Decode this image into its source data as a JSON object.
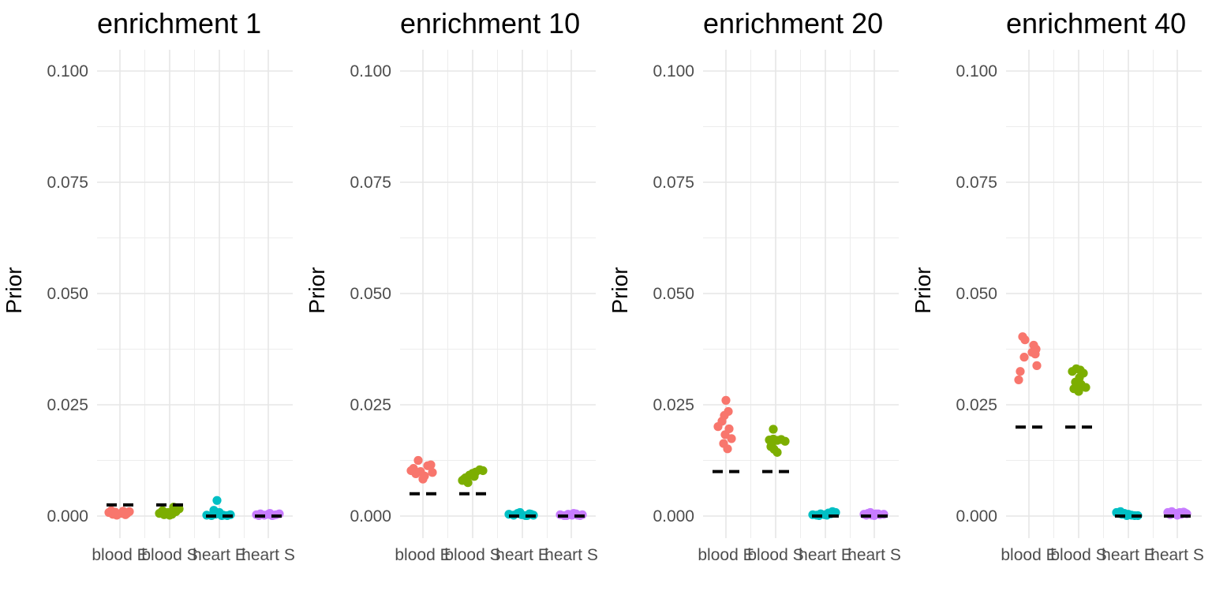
{
  "figure": {
    "y_axis_title": "Prior",
    "x_categories": [
      "blood E",
      "blood S",
      "heart E",
      "heart S"
    ],
    "y_ticks": [
      {
        "label": "0.100",
        "value": 0.1
      },
      {
        "label": "0.075",
        "value": 0.075
      },
      {
        "label": "0.050",
        "value": 0.05
      },
      {
        "label": "0.025",
        "value": 0.025
      },
      {
        "label": "0.000",
        "value": 0.0
      }
    ],
    "point_format": "[x_jitter_px, prior_value]",
    "style": {
      "background": "#FFFFFF",
      "grid_major_color": "#E6E6E6",
      "grid_minor_color": "#EDEDED",
      "axis_text_color": "#4D4D4D",
      "title_color": "#000000",
      "axis_title_color": "#000000",
      "dash_color": "#000000",
      "palette": {
        "blood E": "#F8766D",
        "blood S": "#7CAE00",
        "heart E": "#00BFC4",
        "heart S": "#C77CFF"
      }
    }
  },
  "chart_data": [
    {
      "type": "scatter",
      "title": "enrichment 1",
      "xlabel": "",
      "ylabel": "Prior",
      "ylim": [
        0,
        0.1
      ],
      "grid": true,
      "legend": "none",
      "categories": [
        "blood E",
        "blood S",
        "heart E",
        "heart S"
      ],
      "series": [
        {
          "name": "blood E",
          "color": "#F8766D",
          "expected_prior": 0.0025,
          "points": [
            [
              -14,
              0.0008
            ],
            [
              -9,
              0.0004
            ],
            [
              -4,
              0.0002
            ],
            [
              2,
              0.0006
            ],
            [
              7,
              0.0003
            ],
            [
              12,
              0.001
            ],
            [
              -11,
              0.0012
            ],
            [
              4,
              0.0011
            ],
            [
              -6,
              0.0009
            ],
            [
              9,
              0.0006
            ]
          ]
        },
        {
          "name": "blood S",
          "color": "#7CAE00",
          "expected_prior": 0.0025,
          "points": [
            [
              -13,
              0.0006
            ],
            [
              -7,
              0.0003
            ],
            [
              -2,
              0.0008
            ],
            [
              3,
              0.0004
            ],
            [
              8,
              0.001
            ],
            [
              12,
              0.0016
            ],
            [
              5,
              0.002
            ],
            [
              -9,
              0.0012
            ],
            [
              0,
              0.0002
            ],
            [
              10,
              0.0018
            ]
          ]
        },
        {
          "name": "heart E",
          "color": "#00BFC4",
          "expected_prior": 0.0,
          "points": [
            [
              -3,
              0.0035
            ],
            [
              -16,
              0.0002
            ],
            [
              -10,
              0.0001
            ],
            [
              -5,
              0.0004
            ],
            [
              0,
              0.0008
            ],
            [
              5,
              0.0002
            ],
            [
              10,
              0.0001
            ],
            [
              14,
              0.0003
            ],
            [
              -7,
              0.0013
            ],
            [
              3,
              0.0001
            ]
          ]
        },
        {
          "name": "heart S",
          "color": "#C77CFF",
          "expected_prior": 0.0,
          "points": [
            [
              -15,
              0.0003
            ],
            [
              -10,
              0.0005
            ],
            [
              -5,
              0.0002
            ],
            [
              0,
              0.0004
            ],
            [
              5,
              0.0001
            ],
            [
              10,
              0.0003
            ],
            [
              14,
              0.0005
            ],
            [
              -12,
              0.0001
            ],
            [
              2,
              0.0006
            ],
            [
              7,
              0.0002
            ]
          ]
        }
      ]
    },
    {
      "type": "scatter",
      "title": "enrichment 10",
      "xlabel": "",
      "ylabel": "Prior",
      "ylim": [
        0,
        0.1
      ],
      "grid": true,
      "legend": "none",
      "categories": [
        "blood E",
        "blood S",
        "heart E",
        "heart S"
      ],
      "series": [
        {
          "name": "blood E",
          "color": "#F8766D",
          "expected_prior": 0.005,
          "points": [
            [
              -6,
              0.0125
            ],
            [
              -12,
              0.0107
            ],
            [
              -9,
              0.0095
            ],
            [
              -3,
              0.01
            ],
            [
              2,
              0.009
            ],
            [
              6,
              0.0113
            ],
            [
              10,
              0.0115
            ],
            [
              12,
              0.0098
            ],
            [
              0,
              0.0083
            ],
            [
              -15,
              0.0102
            ]
          ]
        },
        {
          "name": "blood S",
          "color": "#7CAE00",
          "expected_prior": 0.005,
          "points": [
            [
              -13,
              0.008
            ],
            [
              -9,
              0.0086
            ],
            [
              -4,
              0.0092
            ],
            [
              0,
              0.0096
            ],
            [
              4,
              0.0099
            ],
            [
              9,
              0.0104
            ],
            [
              13,
              0.0102
            ],
            [
              -6,
              0.0075
            ],
            [
              2,
              0.0089
            ],
            [
              -11,
              0.0083
            ]
          ]
        },
        {
          "name": "heart E",
          "color": "#00BFC4",
          "expected_prior": 0.0,
          "points": [
            [
              -17,
              0.0004
            ],
            [
              -11,
              0.0002
            ],
            [
              -6,
              0.0006
            ],
            [
              -1,
              0.0003
            ],
            [
              4,
              0.0001
            ],
            [
              9,
              0.0005
            ],
            [
              14,
              0.0002
            ],
            [
              -3,
              0.0008
            ],
            [
              6,
              0.0001
            ],
            [
              11,
              0.0004
            ]
          ]
        },
        {
          "name": "heart S",
          "color": "#C77CFF",
          "expected_prior": 0.0,
          "points": [
            [
              -14,
              0.0003
            ],
            [
              -9,
              0.0001
            ],
            [
              -4,
              0.0004
            ],
            [
              1,
              0.0002
            ],
            [
              6,
              0.0005
            ],
            [
              11,
              0.0001
            ],
            [
              14,
              0.0003
            ],
            [
              -6,
              0.0001
            ],
            [
              3,
              0.0006
            ],
            [
              8,
              0.0002
            ]
          ]
        }
      ]
    },
    {
      "type": "scatter",
      "title": "enrichment 20",
      "xlabel": "",
      "ylabel": "Prior",
      "ylim": [
        0,
        0.1
      ],
      "grid": true,
      "legend": "none",
      "categories": [
        "blood E",
        "blood S",
        "heart E",
        "heart S"
      ],
      "series": [
        {
          "name": "blood E",
          "color": "#F8766D",
          "expected_prior": 0.01,
          "points": [
            [
              0,
              0.026
            ],
            [
              3,
              0.0235
            ],
            [
              -2,
              0.0226
            ],
            [
              -5,
              0.0213
            ],
            [
              -10,
              0.0201
            ],
            [
              4,
              0.0196
            ],
            [
              -1,
              0.0183
            ],
            [
              7,
              0.0174
            ],
            [
              -3,
              0.0163
            ],
            [
              2,
              0.0151
            ]
          ]
        },
        {
          "name": "blood S",
          "color": "#7CAE00",
          "expected_prior": 0.01,
          "points": [
            [
              -3,
              0.0195
            ],
            [
              -8,
              0.0171
            ],
            [
              -3,
              0.0173
            ],
            [
              2,
              0.017
            ],
            [
              7,
              0.0172
            ],
            [
              12,
              0.0168
            ],
            [
              -6,
              0.0156
            ],
            [
              -2,
              0.015
            ],
            [
              2,
              0.0143
            ],
            [
              -5,
              0.0162
            ]
          ]
        },
        {
          "name": "heart E",
          "color": "#00BFC4",
          "expected_prior": 0.0,
          "points": [
            [
              -16,
              0.0003
            ],
            [
              -11,
              0.0002
            ],
            [
              -6,
              0.0005
            ],
            [
              -1,
              0.0003
            ],
            [
              4,
              0.0007
            ],
            [
              9,
              0.001
            ],
            [
              13,
              0.0008
            ],
            [
              -8,
              0.0001
            ],
            [
              2,
              0.0002
            ],
            [
              7,
              0.0005
            ]
          ]
        },
        {
          "name": "heart S",
          "color": "#C77CFF",
          "expected_prior": 0.0,
          "points": [
            [
              -13,
              0.0004
            ],
            [
              -8,
              0.0006
            ],
            [
              -3,
              0.0002
            ],
            [
              2,
              0.0005
            ],
            [
              7,
              0.0003
            ],
            [
              12,
              0.0004
            ],
            [
              -5,
              0.0008
            ],
            [
              0,
              0.0001
            ],
            [
              5,
              0.0005
            ],
            [
              -10,
              0.0002
            ]
          ]
        }
      ]
    },
    {
      "type": "scatter",
      "title": "enrichment 40",
      "xlabel": "",
      "ylabel": "Prior",
      "ylim": [
        0,
        0.1
      ],
      "grid": true,
      "legend": "none",
      "categories": [
        "blood E",
        "blood S",
        "heart E",
        "heart S"
      ],
      "series": [
        {
          "name": "blood E",
          "color": "#F8766D",
          "expected_prior": 0.02,
          "points": [
            [
              -8,
              0.0403
            ],
            [
              -5,
              0.0396
            ],
            [
              6,
              0.0384
            ],
            [
              9,
              0.0375
            ],
            [
              -6,
              0.0357
            ],
            [
              8,
              0.0364
            ],
            [
              -11,
              0.0325
            ],
            [
              -13,
              0.0306
            ],
            [
              10,
              0.0338
            ],
            [
              4,
              0.0368
            ]
          ]
        },
        {
          "name": "blood S",
          "color": "#7CAE00",
          "expected_prior": 0.02,
          "points": [
            [
              -8,
              0.0325
            ],
            [
              -3,
              0.0331
            ],
            [
              2,
              0.0328
            ],
            [
              6,
              0.0321
            ],
            [
              1,
              0.0311
            ],
            [
              -4,
              0.0301
            ],
            [
              3,
              0.0296
            ],
            [
              9,
              0.0289
            ],
            [
              -6,
              0.0286
            ],
            [
              0,
              0.028
            ]
          ]
        },
        {
          "name": "heart E",
          "color": "#00BFC4",
          "expected_prior": 0.0,
          "points": [
            [
              -15,
              0.0008
            ],
            [
              -10,
              0.001
            ],
            [
              -5,
              0.0006
            ],
            [
              0,
              0.0004
            ],
            [
              4,
              0.0002
            ],
            [
              -8,
              0.0004
            ],
            [
              -2,
              0.0001
            ],
            [
              12,
              0.0001
            ],
            [
              8,
              0.0001
            ],
            [
              -12,
              0.0006
            ]
          ]
        },
        {
          "name": "heart S",
          "color": "#C77CFF",
          "expected_prior": 0.0,
          "points": [
            [
              -12,
              0.0008
            ],
            [
              -7,
              0.001
            ],
            [
              -2,
              0.0006
            ],
            [
              3,
              0.0008
            ],
            [
              8,
              0.0009
            ],
            [
              12,
              0.0005
            ],
            [
              -9,
              0.0003
            ],
            [
              0,
              0.0002
            ],
            [
              5,
              0.0004
            ],
            [
              10,
              0.0007
            ]
          ]
        }
      ]
    }
  ]
}
